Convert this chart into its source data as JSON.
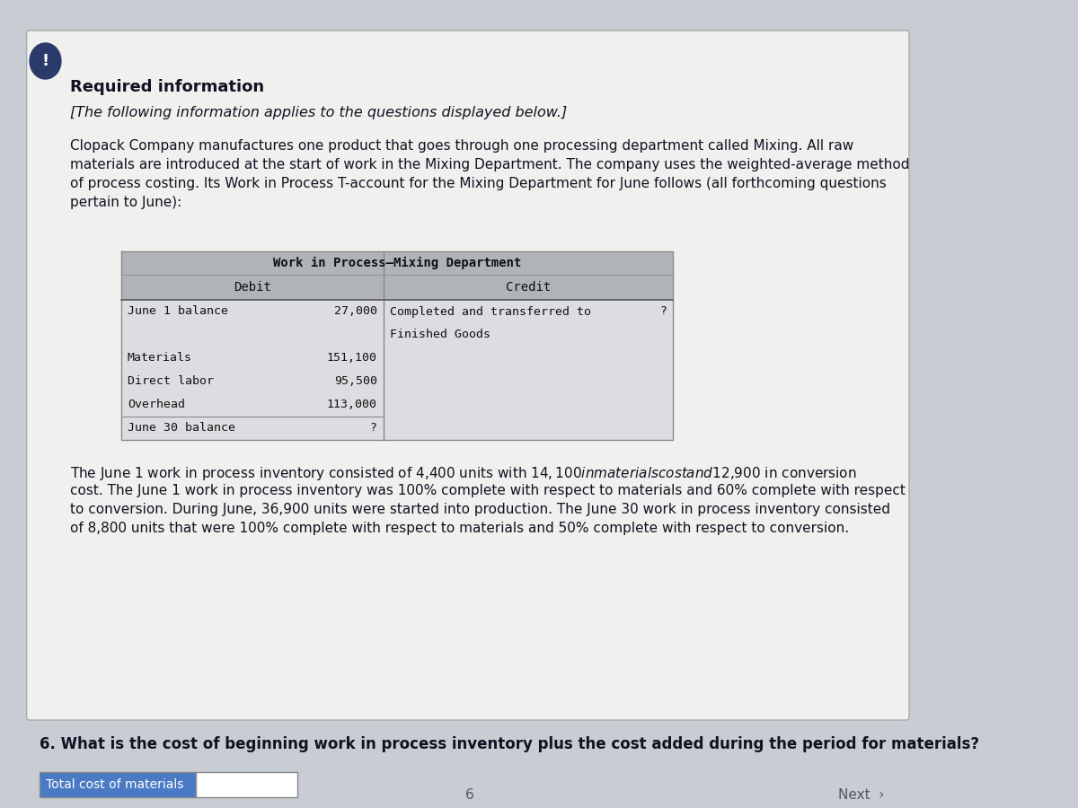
{
  "bg_color": "#c8cdd4",
  "card_color": "#f0f0ee",
  "card_edge_color": "#aaaaaa",
  "title_text": "Required information",
  "subtitle_text": "[The following information applies to the questions displayed below.]",
  "para1_lines": [
    "Clopack Company manufactures one product that goes through one processing department called Mixing. All raw",
    "materials are introduced at the start of work in the Mixing Department. The company uses the weighted-average method",
    "of process costing. Its Work in Process T-account for the Mixing Department for June follows (all forthcoming questions",
    "pertain to June):"
  ],
  "t_title": "Work in Process–Mixing Department",
  "t_col1_header": "Debit",
  "t_col2_header": "Credit",
  "t_header_bg": "#b0b4b8",
  "t_header_text": "#111111",
  "t_row_bg": "#dcdde0",
  "t_border": "#888888",
  "t_rows_left": [
    [
      "June 1 balance",
      "27,000"
    ],
    [
      "",
      ""
    ],
    [
      "Materials",
      "151,100"
    ],
    [
      "Direct labor",
      "95,500"
    ],
    [
      "Overhead",
      "113,000"
    ],
    [
      "June 30 balance",
      "?"
    ]
  ],
  "t_rows_right": [
    [
      "Completed and transferred to",
      "?"
    ],
    [
      "Finished Goods",
      ""
    ],
    [
      "",
      ""
    ],
    [
      "",
      ""
    ],
    [
      "",
      ""
    ],
    [
      "",
      ""
    ]
  ],
  "para2_lines": [
    "The June 1 work in process inventory consisted of 4,400 units with $14,100 in materials cost and $12,900 in conversion",
    "cost. The June 1 work in process inventory was 100% complete with respect to materials and 60% complete with respect",
    "to conversion. During June, 36,900 units were started into production. The June 30 work in process inventory consisted",
    "of 8,800 units that were 100% complete with respect to materials and 50% complete with respect to conversion."
  ],
  "question6": "6. What is the cost of beginning work in process inventory plus the cost added during the period for materials?",
  "answer_label": "Total cost of materials",
  "answer_label_bg": "#4a7ac4",
  "answer_label_color": "#ffffff",
  "answer_input_bg": "#ffffff",
  "answer_border": "#888888",
  "excl_bg": "#2a3a6a",
  "excl_color": "#ffffff",
  "mono_font": "DejaVu Sans Mono",
  "sans_font": "DejaVu Sans",
  "nav_color": "#555566"
}
